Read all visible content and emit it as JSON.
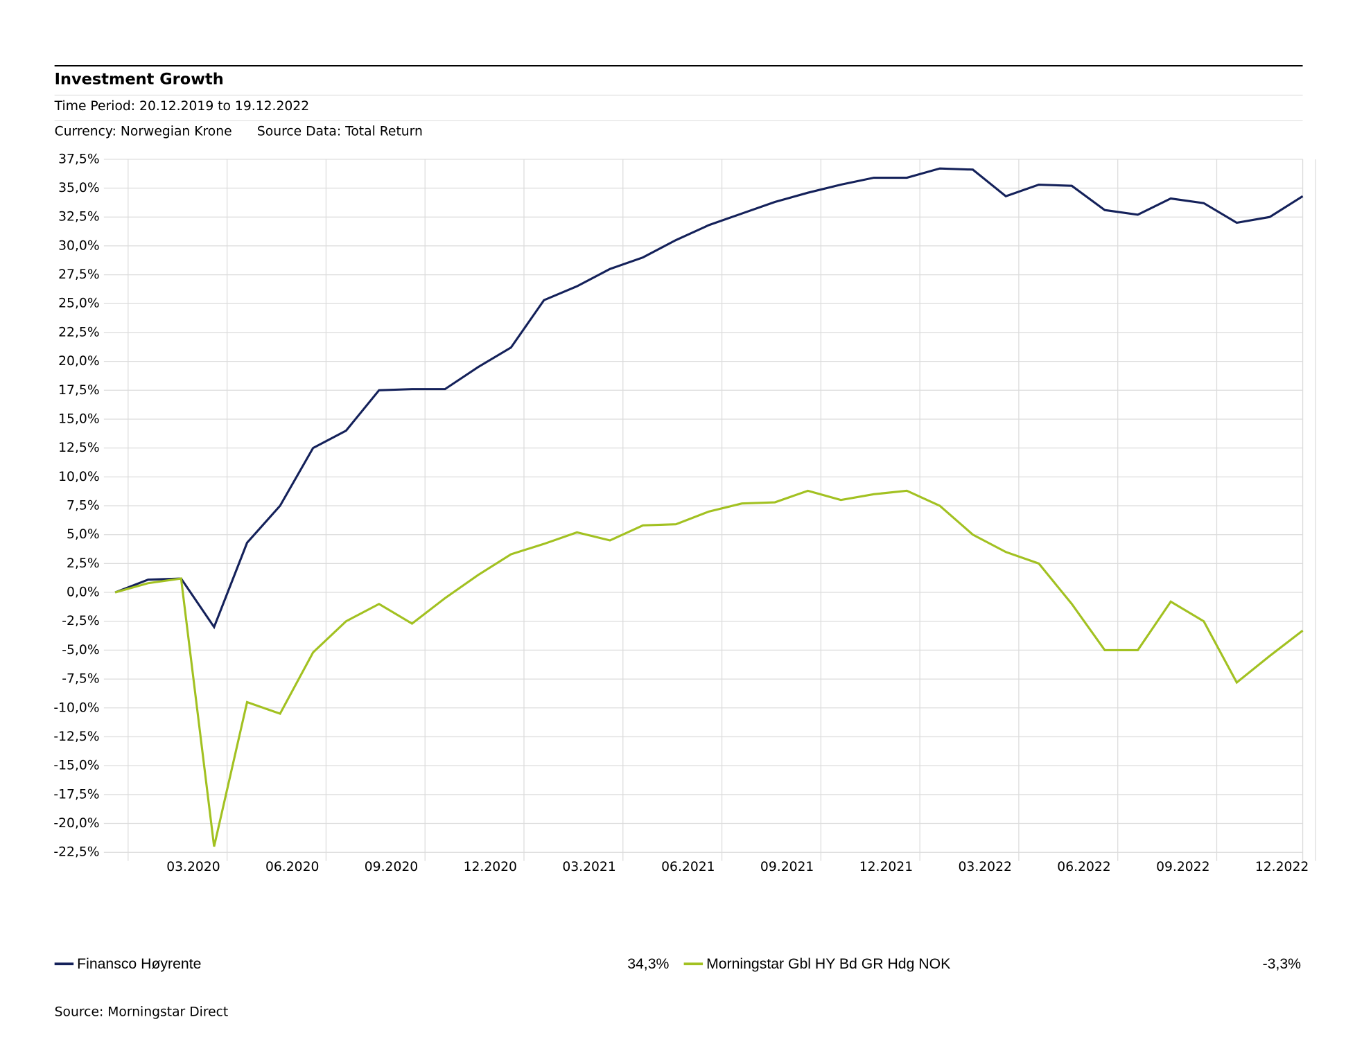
{
  "chart_data": {
    "type": "line",
    "title": "Investment Growth",
    "subtitle": "Time Period: 20.12.2019 to 19.12.2022",
    "currency": "Currency: Norwegian Krone",
    "source_data": "Source Data: Total Return",
    "source": "Source: Morningstar Direct",
    "categories": [
      null,
      null,
      null,
      "03.2020",
      null,
      null,
      "06.2020",
      null,
      null,
      "09.2020",
      null,
      null,
      "12.2020",
      null,
      null,
      "03.2021",
      null,
      null,
      "06.2021",
      null,
      null,
      "09.2021",
      null,
      null,
      "12.2021",
      null,
      null,
      "03.2022",
      null,
      null,
      "06.2022",
      null,
      null,
      "09.2022",
      null,
      null,
      "12.2022"
    ],
    "series": [
      {
        "name": "Finansco Høyrente",
        "color": "#14215a",
        "legend_value": "34,3%",
        "values": [
          0,
          1.1,
          1.2,
          -3.0,
          4.3,
          7.5,
          12.5,
          14.0,
          17.5,
          17.6,
          17.6,
          19.5,
          21.2,
          25.3,
          26.5,
          28.0,
          29.0,
          30.5,
          31.8,
          32.8,
          33.8,
          34.6,
          35.3,
          35.9,
          35.9,
          36.7,
          36.6,
          34.3,
          35.3,
          35.2,
          33.1,
          32.7,
          34.1,
          33.7,
          32.0,
          32.5,
          34.3
        ]
      },
      {
        "name": "Morningstar Gbl HY Bd GR Hdg NOK",
        "color": "#a2c121",
        "legend_value": "-3,3%",
        "values": [
          0,
          0.8,
          1.2,
          -22.0,
          -9.5,
          -10.5,
          -5.2,
          -2.5,
          -1.0,
          -2.7,
          -0.5,
          1.5,
          3.3,
          4.2,
          5.2,
          4.5,
          5.8,
          5.9,
          7.0,
          7.7,
          7.8,
          8.8,
          8.0,
          8.5,
          8.8,
          7.5,
          5.0,
          3.5,
          2.5,
          -1.0,
          -5.0,
          -5.0,
          -0.8,
          -2.5,
          -7.8,
          -5.5,
          -3.3
        ]
      }
    ],
    "ylim": [
      -22.5,
      37.5
    ],
    "yticks": [
      {
        "value": -22.5,
        "label": "-22,5%"
      },
      {
        "value": -20,
        "label": "-20,0%"
      },
      {
        "value": -17.5,
        "label": "-17,5%"
      },
      {
        "value": -15,
        "label": "-15,0%"
      },
      {
        "value": -12.5,
        "label": "-12,5%"
      },
      {
        "value": -10,
        "label": "-10,0%"
      },
      {
        "value": -7.5,
        "label": "-7,5%"
      },
      {
        "value": -5,
        "label": "-5,0%"
      },
      {
        "value": -2.5,
        "label": "-2,5%"
      },
      {
        "value": 0,
        "label": "0,0%"
      },
      {
        "value": 2.5,
        "label": "2,5%"
      },
      {
        "value": 5,
        "label": "5,0%"
      },
      {
        "value": 7.5,
        "label": "7,5%"
      },
      {
        "value": 10,
        "label": "10,0%"
      },
      {
        "value": 12.5,
        "label": "12,5%"
      },
      {
        "value": 15,
        "label": "15,0%"
      },
      {
        "value": 17.5,
        "label": "17,5%"
      },
      {
        "value": 20,
        "label": "20,0%"
      },
      {
        "value": 22.5,
        "label": "22,5%"
      },
      {
        "value": 25,
        "label": "25,0%"
      },
      {
        "value": 27.5,
        "label": "27,5%"
      },
      {
        "value": 30,
        "label": "30,0%"
      },
      {
        "value": 32.5,
        "label": "32,5%"
      },
      {
        "value": 35,
        "label": "35,0%"
      },
      {
        "value": 37.5,
        "label": "37,5%"
      }
    ],
    "grid": true
  }
}
